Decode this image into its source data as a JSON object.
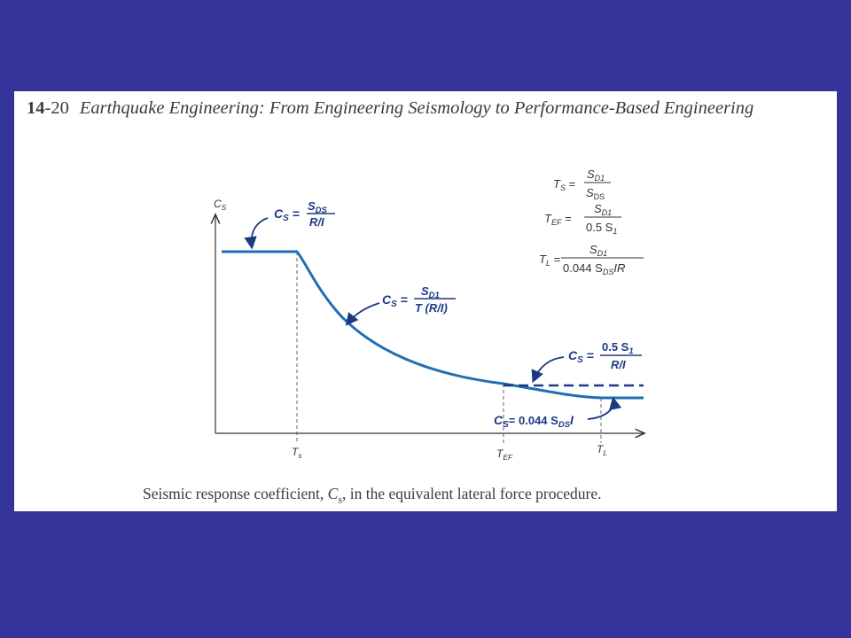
{
  "header": {
    "page_number_bold": "14",
    "page_number_rest": "-20",
    "book_title": "Earthquake Engineering: From Engineering Seismology to Performance-Based Engineering"
  },
  "figure": {
    "y_axis_label": "C",
    "y_axis_sub": "S",
    "x_ticks": [
      {
        "main": "T",
        "sub": "s"
      },
      {
        "main": "T",
        "sub": "EF"
      },
      {
        "main": "T",
        "sub": "L"
      }
    ],
    "formula_plateau": {
      "lhs": "C",
      "lhs_sub": "S",
      "num": "S",
      "num_sub": "DS",
      "den": "R/I"
    },
    "formula_descending": {
      "lhs": "C",
      "lhs_sub": "S",
      "num": "S",
      "num_sub": "D1",
      "den": "T (R/I)"
    },
    "formula_upper_limit": {
      "lhs": "C",
      "lhs_sub": "S",
      "num_pre": "0.5 S",
      "num_sub": "1",
      "den": "R/I"
    },
    "formula_lower_limit": {
      "lhs": "C",
      "lhs_sub": "S",
      "rhs_pre": "= 0.044 S",
      "rhs_sub": "DS",
      "rhs_post": "I"
    },
    "definitions": [
      {
        "lhs": "T",
        "lhs_sub": "S",
        "num": "S",
        "num_sub": "D1",
        "den": "S",
        "den_sub": "DS",
        "den_post": ""
      },
      {
        "lhs": "T",
        "lhs_sub": "EF",
        "num": "S",
        "num_sub": "D1",
        "den": "0.5 S",
        "den_sub": "1",
        "den_post": ""
      },
      {
        "lhs": "T",
        "lhs_sub": "L",
        "num": "S",
        "num_sub": "D1",
        "den": "0.044 S",
        "den_sub": "DS",
        "den_post": "IR"
      }
    ],
    "colors": {
      "curve": "#1f6fb2",
      "dashed_limit": "#1c3a82",
      "axis": "#333333",
      "text": "#1c3a82"
    }
  },
  "caption": {
    "pre": "Seismic response coefficient, ",
    "sym": "C",
    "sym_sub": "s",
    "post": ", in the equivalent lateral force procedure."
  }
}
